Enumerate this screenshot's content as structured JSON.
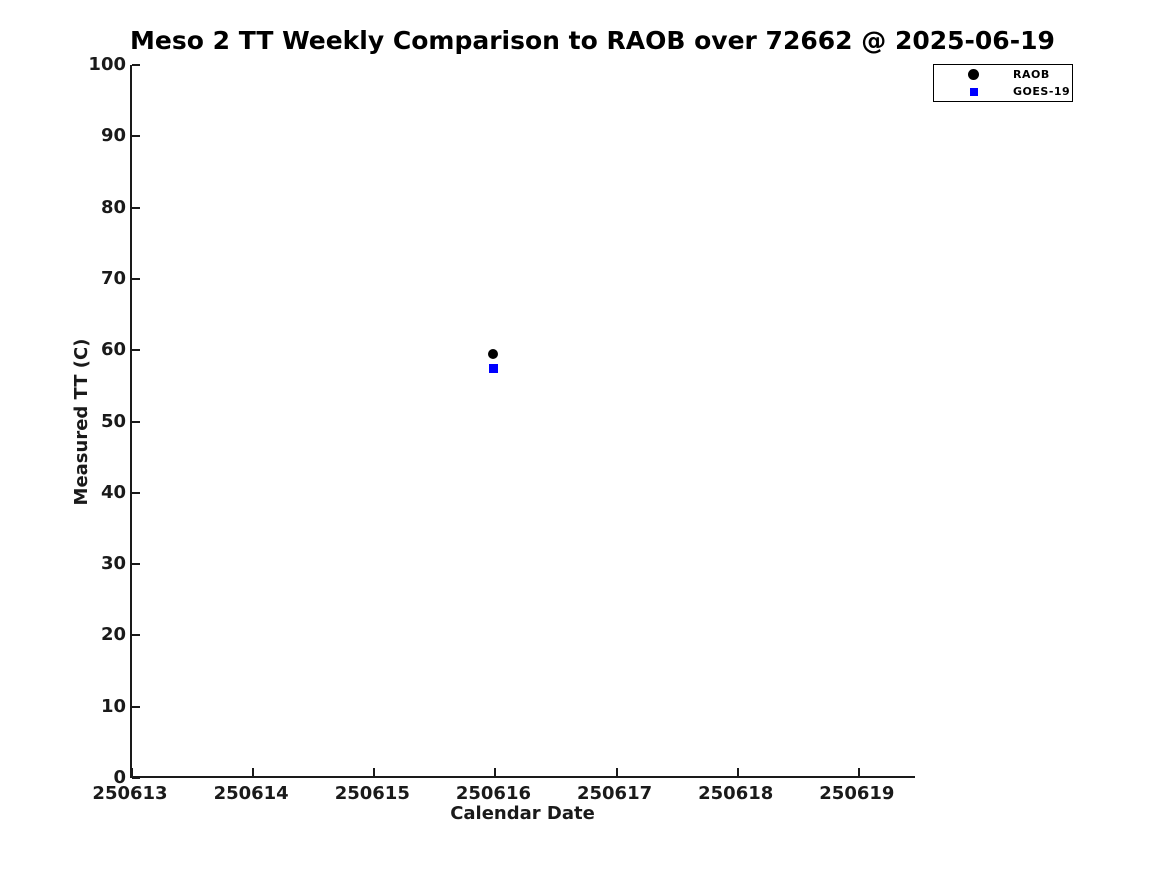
{
  "chart_data": {
    "type": "scatter",
    "title": "Meso 2 TT Weekly Comparison to RAOB over 72662 @ 2025-06-19",
    "xlabel": "Calendar Date",
    "ylabel": "Measured TT (C)",
    "xlim": [
      250613,
      250619.48
    ],
    "ylim": [
      0,
      100
    ],
    "xticks": [
      "250613",
      "250614",
      "250615",
      "250616",
      "250617",
      "250618",
      "250619"
    ],
    "xtick_values": [
      250613,
      250614,
      250615,
      250616,
      250617,
      250618,
      250619
    ],
    "yticks": [
      "0",
      "10",
      "20",
      "30",
      "40",
      "50",
      "60",
      "70",
      "80",
      "90",
      "100"
    ],
    "ytick_values": [
      0,
      10,
      20,
      30,
      40,
      50,
      60,
      70,
      80,
      90,
      100
    ],
    "grid": false,
    "legend_position": "top-right",
    "axis_color": "#1a1a1a",
    "background_color": "#ffffff",
    "series": [
      {
        "name": "RAOB",
        "marker": "circle",
        "color": "#000000",
        "x": [
          250616
        ],
        "y": [
          59.5
        ]
      },
      {
        "name": "GOES-19",
        "marker": "square",
        "color": "#0000ff",
        "x": [
          250616
        ],
        "y": [
          57.4
        ]
      }
    ]
  }
}
